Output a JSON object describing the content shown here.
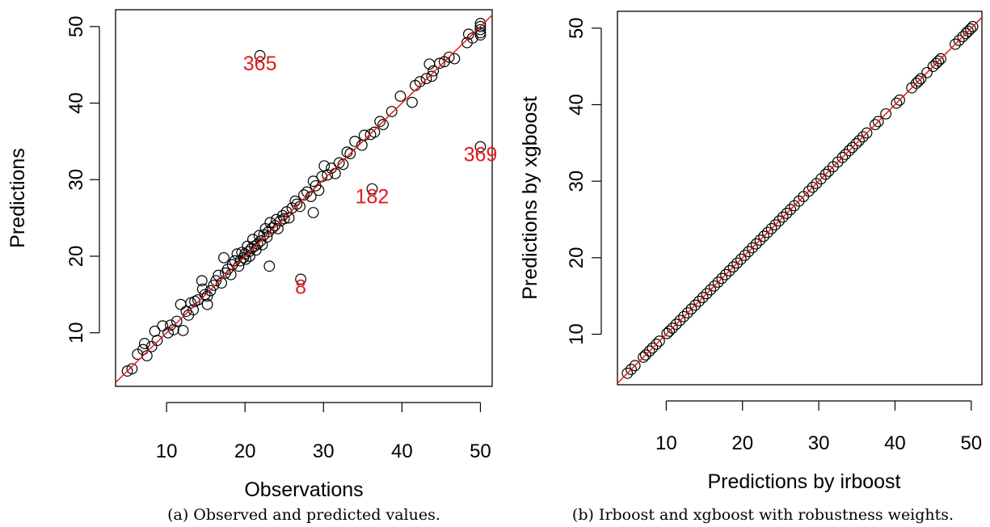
{
  "colors": {
    "points": "#000000",
    "reference_line": "#e41a1c",
    "labels": "#e41a1c",
    "background": "#ffffff"
  },
  "chart_data": [
    {
      "type": "scatter",
      "title": "",
      "caption": "(a) Observed and predicted values.",
      "xlabel": "Observations",
      "ylabel": "Predictions",
      "xlim": [
        3.5,
        51.5
      ],
      "ylim": [
        3.0,
        52.2
      ],
      "xticks": [
        10,
        20,
        30,
        40,
        50
      ],
      "yticks": [
        10,
        20,
        30,
        40,
        50
      ],
      "grid": false,
      "reference_line": "y = x",
      "points": [
        [
          5.0,
          5.0
        ],
        [
          5.6,
          5.3
        ],
        [
          6.3,
          7.2
        ],
        [
          7.0,
          7.8
        ],
        [
          7.2,
          8.6
        ],
        [
          7.5,
          7.0
        ],
        [
          8.1,
          8.2
        ],
        [
          8.5,
          10.2
        ],
        [
          8.8,
          9.0
        ],
        [
          9.5,
          10.9
        ],
        [
          10.2,
          10.0
        ],
        [
          10.5,
          11.0
        ],
        [
          10.9,
          10.4
        ],
        [
          11.3,
          11.5
        ],
        [
          11.8,
          13.7
        ],
        [
          12.1,
          10.3
        ],
        [
          12.5,
          12.8
        ],
        [
          12.8,
          12.3
        ],
        [
          13.1,
          13.9
        ],
        [
          13.4,
          13.0
        ],
        [
          13.6,
          14.1
        ],
        [
          14.0,
          14.3
        ],
        [
          14.5,
          16.8
        ],
        [
          14.6,
          15.7
        ],
        [
          14.9,
          15.0
        ],
        [
          15.2,
          14.8
        ],
        [
          15.2,
          13.7
        ],
        [
          15.6,
          15.5
        ],
        [
          16.0,
          16.2
        ],
        [
          16.3,
          16.8
        ],
        [
          16.6,
          17.5
        ],
        [
          17.0,
          16.5
        ],
        [
          17.3,
          19.8
        ],
        [
          17.5,
          17.8
        ],
        [
          17.8,
          18.3
        ],
        [
          18.2,
          17.6
        ],
        [
          18.4,
          18.9
        ],
        [
          18.7,
          19.4
        ],
        [
          19.0,
          20.3
        ],
        [
          19.2,
          18.7
        ],
        [
          19.4,
          19.4
        ],
        [
          19.6,
          20.5
        ],
        [
          19.8,
          19.8
        ],
        [
          20.0,
          20.3
        ],
        [
          20.1,
          19.6
        ],
        [
          20.3,
          21.3
        ],
        [
          20.5,
          20.6
        ],
        [
          20.6,
          20.0
        ],
        [
          20.8,
          21.0
        ],
        [
          21.0,
          22.2
        ],
        [
          21.2,
          21.3
        ],
        [
          21.4,
          20.8
        ],
        [
          21.6,
          21.6
        ],
        [
          21.8,
          22.7
        ],
        [
          22.0,
          22.0
        ],
        [
          22.2,
          21.5
        ],
        [
          22.4,
          22.8
        ],
        [
          22.6,
          23.6
        ],
        [
          22.8,
          22.5
        ],
        [
          23.0,
          23.2
        ],
        [
          23.1,
          18.7
        ],
        [
          23.2,
          24.4
        ],
        [
          23.5,
          23.7
        ],
        [
          23.8,
          24.0
        ],
        [
          24.0,
          24.8
        ],
        [
          24.2,
          23.6
        ],
        [
          24.5,
          24.6
        ],
        [
          24.8,
          25.3
        ],
        [
          25.0,
          24.9
        ],
        [
          25.3,
          25.8
        ],
        [
          25.6,
          25.0
        ],
        [
          26.0,
          26.3
        ],
        [
          26.4,
          27.2
        ],
        [
          26.6,
          26.8
        ],
        [
          27.0,
          26.5
        ],
        [
          27.1,
          17.0
        ],
        [
          27.5,
          28.0
        ],
        [
          27.9,
          28.4
        ],
        [
          28.4,
          27.8
        ],
        [
          28.7,
          25.7
        ],
        [
          28.7,
          29.8
        ],
        [
          29.0,
          29.2
        ],
        [
          29.4,
          28.6
        ],
        [
          29.8,
          30.4
        ],
        [
          30.1,
          31.8
        ],
        [
          30.5,
          30.6
        ],
        [
          31.0,
          31.5
        ],
        [
          31.5,
          30.8
        ],
        [
          32.0,
          32.2
        ],
        [
          32.5,
          32.0
        ],
        [
          33.0,
          33.6
        ],
        [
          33.4,
          33.4
        ],
        [
          34.0,
          35.0
        ],
        [
          34.9,
          34.5
        ],
        [
          35.2,
          35.8
        ],
        [
          36.0,
          35.9
        ],
        [
          36.2,
          28.8
        ],
        [
          36.5,
          36.2
        ],
        [
          37.2,
          37.6
        ],
        [
          37.6,
          37.2
        ],
        [
          38.7,
          38.9
        ],
        [
          39.8,
          40.9
        ],
        [
          41.3,
          40.1
        ],
        [
          41.7,
          42.3
        ],
        [
          42.3,
          42.8
        ],
        [
          43.1,
          43.2
        ],
        [
          43.5,
          45.1
        ],
        [
          43.8,
          43.5
        ],
        [
          44.0,
          44.2
        ],
        [
          44.8,
          45.2
        ],
        [
          45.4,
          45.4
        ],
        [
          46.0,
          46.0
        ],
        [
          46.7,
          45.8
        ],
        [
          48.3,
          47.9
        ],
        [
          48.5,
          49.0
        ],
        [
          49.0,
          48.5
        ],
        [
          50.0,
          50.4
        ],
        [
          50.0,
          50.0
        ],
        [
          50.0,
          49.6
        ],
        [
          50.0,
          49.2
        ],
        [
          50.0,
          48.9
        ],
        [
          50.0,
          34.3
        ],
        [
          21.9,
          46.2
        ]
      ],
      "point_labels": [
        {
          "text": "365",
          "x": 21.9,
          "y": 46.2
        },
        {
          "text": "369",
          "x": 50.0,
          "y": 34.3
        },
        {
          "text": "182",
          "x": 36.2,
          "y": 28.8
        },
        {
          "text": "8",
          "x": 27.1,
          "y": 17.0
        }
      ]
    },
    {
      "type": "scatter",
      "title": "",
      "caption": "(b) Irboost and xgboost with robustness weights.",
      "xlabel": "Predictions by irboost",
      "ylabel": "Predictions by xgboost",
      "xlim": [
        3.6,
        51.4
      ],
      "ylim": [
        3.4,
        52.2
      ],
      "xticks": [
        10,
        20,
        30,
        40,
        50
      ],
      "yticks": [
        10,
        20,
        30,
        40,
        50
      ],
      "grid": false,
      "reference_line": "y = x",
      "points_on_identity_line": [
        4.9,
        5.4,
        5.9,
        7.0,
        7.3,
        7.8,
        8.2,
        8.7,
        9.1,
        10.1,
        10.4,
        10.8,
        11.3,
        11.8,
        12.3,
        12.8,
        13.3,
        13.8,
        14.3,
        14.8,
        15.3,
        15.8,
        16.3,
        16.8,
        17.3,
        17.8,
        18.3,
        18.8,
        19.3,
        19.8,
        20.3,
        20.8,
        21.3,
        21.8,
        22.3,
        22.8,
        23.3,
        23.8,
        24.3,
        24.8,
        25.3,
        25.8,
        26.3,
        26.8,
        27.4,
        28.0,
        28.7,
        29.2,
        29.7,
        30.3,
        30.9,
        31.3,
        31.9,
        32.5,
        33.1,
        33.5,
        34.0,
        34.4,
        34.9,
        35.3,
        35.8,
        36.3,
        37.4,
        37.8,
        38.8,
        40.2,
        40.6,
        42.2,
        42.8,
        43.1,
        43.4,
        44.2,
        45.0,
        45.4,
        45.7,
        46.0,
        47.9,
        48.4,
        48.9,
        49.3,
        49.6,
        49.9,
        50.2
      ]
    }
  ]
}
